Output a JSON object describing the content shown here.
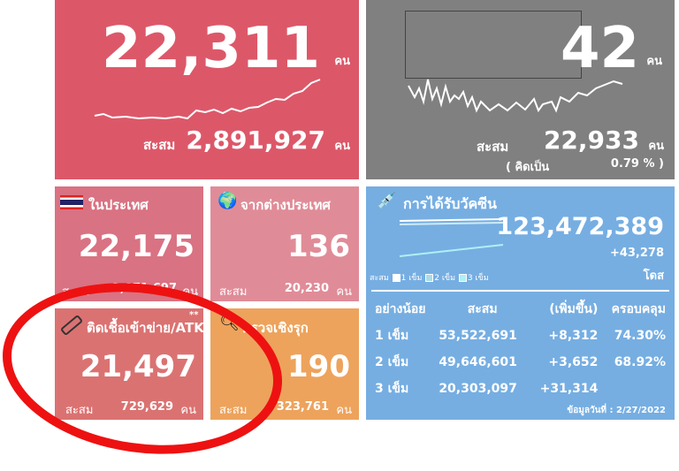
{
  "unit": "คน",
  "cumulative_label": "สะสม",
  "total_cases": {
    "today": "22,311",
    "cumulative": "2,891,927",
    "color": "#dc5869"
  },
  "deaths": {
    "today": "42",
    "cumulative": "22,933",
    "rate_label": "( คิดเป็น",
    "rate": "0.79 % )",
    "color": "#808080"
  },
  "domestic": {
    "label": "ในประเทศ",
    "icon": "thai-flag-icon",
    "today": "22,175",
    "cumulative": "2,871,697"
  },
  "imported": {
    "label": "จากต่างประเทศ",
    "icon": "globe-plane-icon",
    "today": "136",
    "cumulative": "20,230"
  },
  "atk": {
    "label": "ติดเชื้อเข้าข่าย/ATK",
    "note": "**",
    "icon": "atk-test-icon",
    "today": "21,497",
    "cumulative": "729,629"
  },
  "proactive": {
    "label": "ตรวจเชิงรุก",
    "icon": "search-icon",
    "today": "190",
    "cumulative": "323,761"
  },
  "vaccine": {
    "label": "การได้รับวัคซีน",
    "icon": "syringe-icon",
    "total": "123,472,389",
    "increase": "+43,278",
    "dose_unit": "โดส",
    "legend": [
      "1 เข็ม",
      "2 เข็ม",
      "3 เข็ม"
    ],
    "headers": [
      "อย่างน้อย",
      "สะสม",
      "(เพิ่มขึ้น)",
      "ครอบคลุม"
    ],
    "rows": [
      {
        "dose": "1 เข็ม",
        "cum": "53,522,691",
        "inc": "+8,312",
        "cov": "74.30%"
      },
      {
        "dose": "2 เข็ม",
        "cum": "49,646,601",
        "inc": "+3,652",
        "cov": "68.92%"
      },
      {
        "dose": "3 เข็ม",
        "cum": "20,303,097",
        "inc": "+31,314",
        "cov": ""
      }
    ],
    "date": "ข้อมูลวันที่ : 2/27/2022"
  }
}
